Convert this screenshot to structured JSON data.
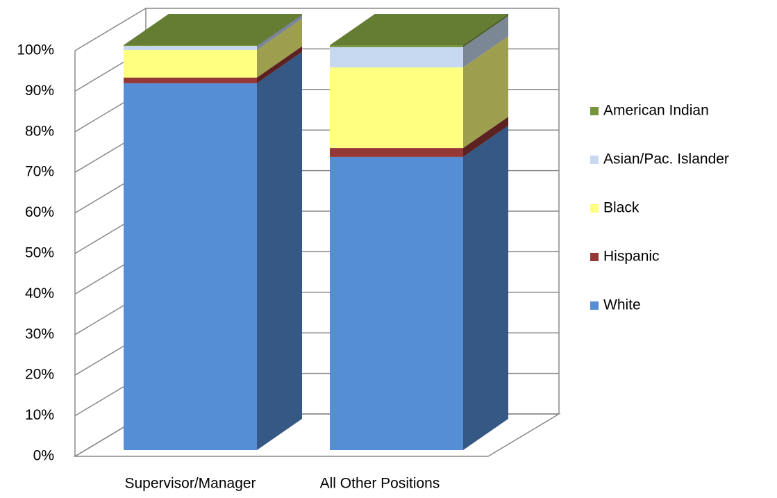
{
  "chart_data": {
    "type": "bar3d_stacked",
    "categories": [
      "Supervisor/Manager",
      "All Other Positions"
    ],
    "series": [
      {
        "name": "White",
        "color": "#558ed5",
        "values": [
          90.6,
          72.4
        ]
      },
      {
        "name": "Hispanic",
        "color": "#953735",
        "values": [
          1.4,
          2.2
        ]
      },
      {
        "name": "Black",
        "color": "#ffff80",
        "values": [
          6.8,
          19.9
        ]
      },
      {
        "name": "Asian/Pac. Islander",
        "color": "#c6d9f1",
        "values": [
          1.0,
          5.0
        ]
      },
      {
        "name": "American Indian",
        "color": "#77933c",
        "values": [
          0.2,
          0.5
        ]
      }
    ],
    "ylim": [
      0,
      100
    ],
    "yticks": [
      {
        "value": 0,
        "label": "0%"
      },
      {
        "value": 10,
        "label": "10%"
      },
      {
        "value": 20,
        "label": "20%"
      },
      {
        "value": 30,
        "label": "30%"
      },
      {
        "value": 40,
        "label": "40%"
      },
      {
        "value": 50,
        "label": "50%"
      },
      {
        "value": 60,
        "label": "60%"
      },
      {
        "value": 70,
        "label": "70%"
      },
      {
        "value": 80,
        "label": "80%"
      },
      {
        "value": 90,
        "label": "90%"
      },
      {
        "value": 100,
        "label": "100%"
      }
    ],
    "grid": true,
    "legend": "right"
  }
}
